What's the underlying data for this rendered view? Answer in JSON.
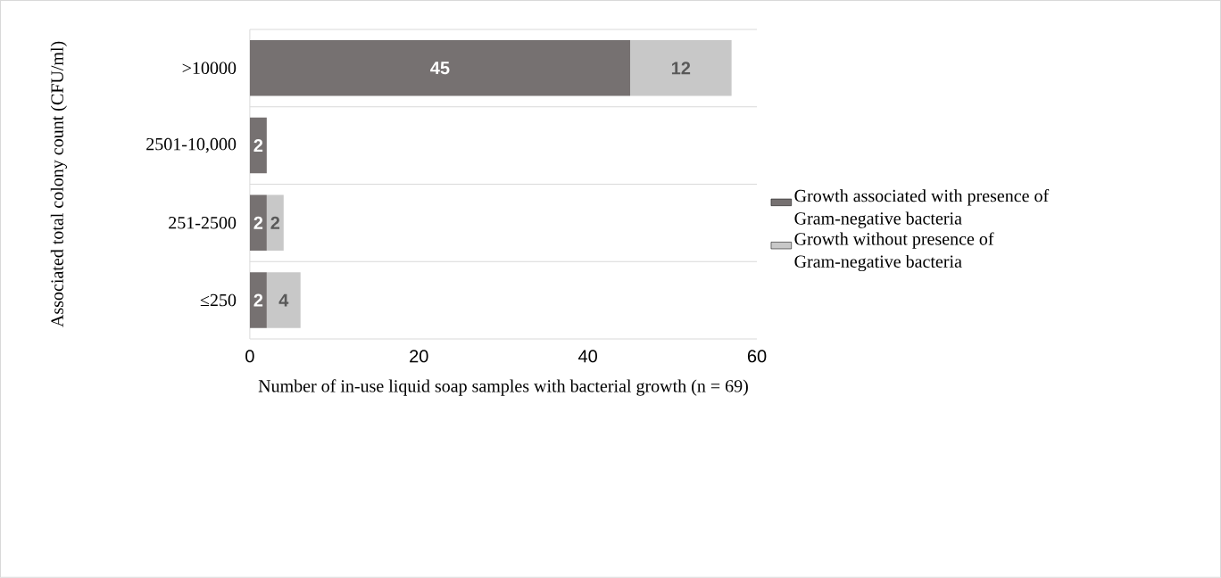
{
  "chart_data": {
    "type": "bar",
    "orientation": "horizontal",
    "stacked": true,
    "categories": [
      ">10000",
      "2501-10,000",
      "251-2500",
      "≤250"
    ],
    "series": [
      {
        "name": "Growth associated with presence of Gram-negative bacteria",
        "color": "#767171",
        "values": [
          45,
          2,
          2,
          2
        ]
      },
      {
        "name": "Growth without presence of Gram-negative bacteria",
        "color": "#c8c8c8",
        "values": [
          12,
          null,
          2,
          4
        ]
      }
    ],
    "xlim": [
      0,
      60
    ],
    "xticks": [
      0,
      20,
      40,
      60
    ],
    "xlabel": "Number of in-use liquid soap samples with bacterial growth (n = 69)",
    "ylabel": "Associated total colony count (CFU/ml)",
    "data_labels": true,
    "grid": "y",
    "legend": "right"
  }
}
